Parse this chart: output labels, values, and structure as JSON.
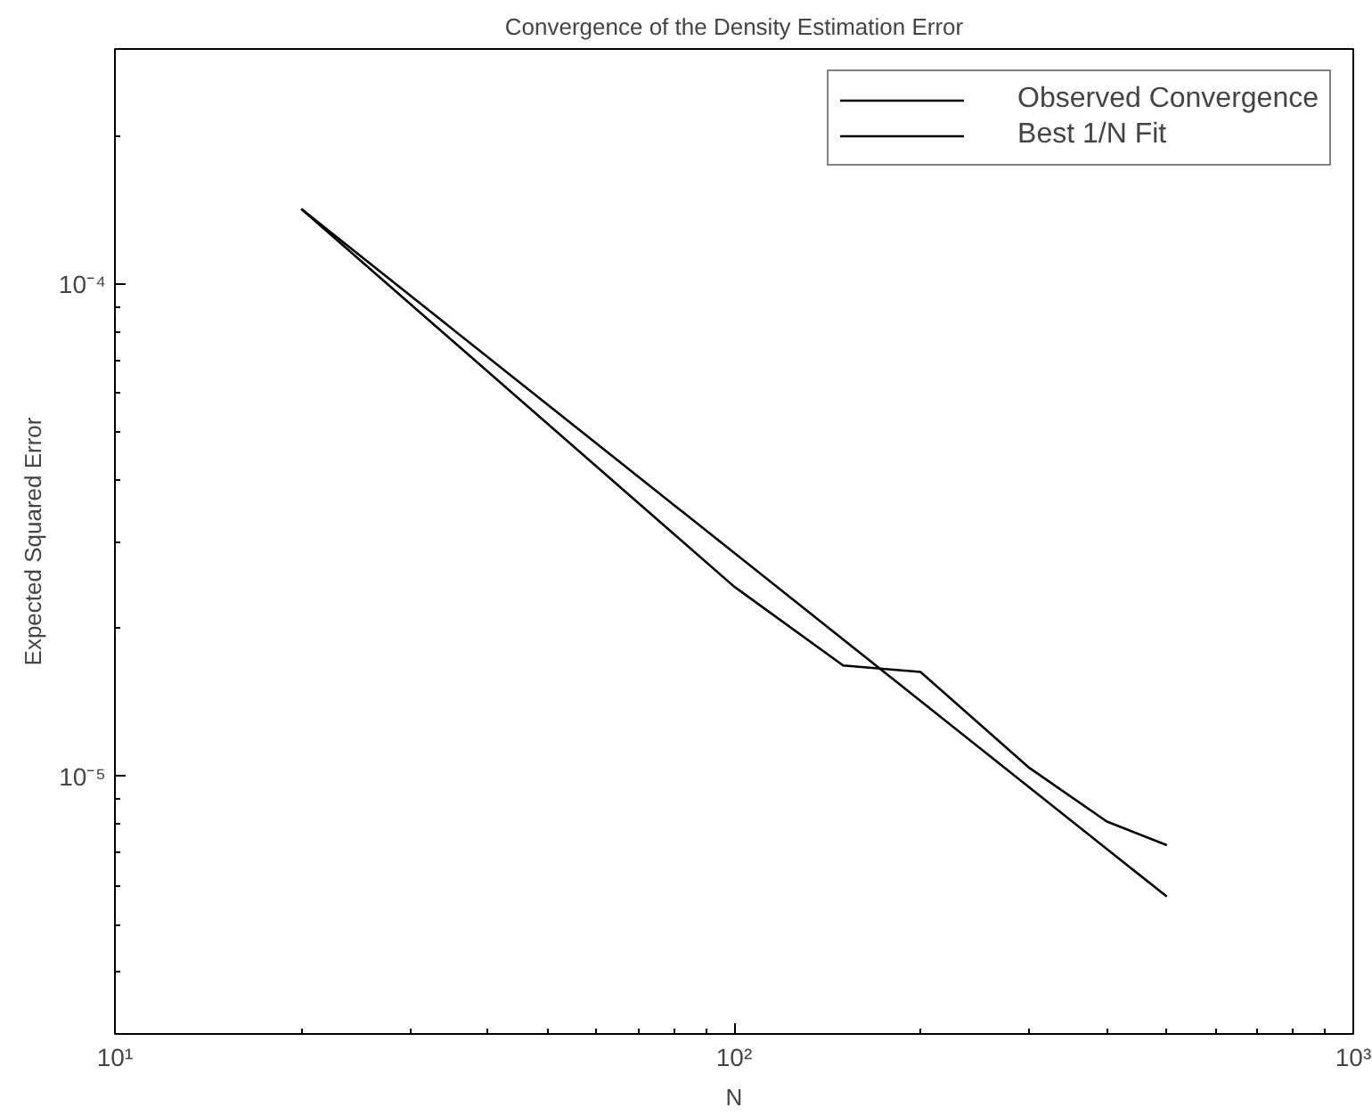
{
  "chart_data": {
    "type": "line",
    "title": "Convergence of the Density Estimation Error",
    "xlabel": "N",
    "ylabel": "Expected Squared Error",
    "log": "xy",
    "xlim": [
      10,
      1000
    ],
    "ylim": [
      3e-06,
      0.0003
    ],
    "xticks": [
      {
        "value": 10,
        "label": "10¹"
      },
      {
        "value": 100,
        "label": "10²"
      },
      {
        "value": 1000,
        "label": "10³"
      }
    ],
    "yticks": [
      {
        "value": 1e-05,
        "label": "10⁻⁵"
      },
      {
        "value": 0.0001,
        "label": "10⁻⁴"
      }
    ],
    "grid": false,
    "legend": "top right",
    "line_style": "solid",
    "marker": "none",
    "series": [
      {
        "name": "Observed Convergence",
        "color": "#000000",
        "x": [
          20,
          100,
          150,
          200,
          300,
          400,
          500
        ],
        "values": [
          0.000142,
          2.43e-05,
          1.68e-05,
          1.63e-05,
          1.04e-05,
          8.1e-06,
          7.25e-06
        ]
      },
      {
        "name": "Best 1/N Fit",
        "color": "#000000",
        "x": [
          20,
          500
        ],
        "values": [
          0.000142,
          5.7e-06
        ]
      }
    ]
  }
}
